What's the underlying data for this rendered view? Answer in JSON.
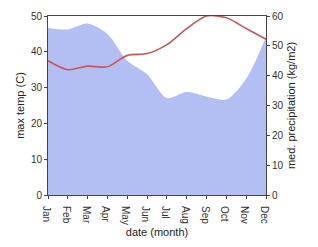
{
  "chart_data": {
    "type": "line",
    "x_label": "date (month)",
    "y_label": "max temp (C)",
    "y2_label": "med. precipitation (kg/m2)",
    "categories": [
      "Jan",
      "Feb",
      "Mar",
      "Apr",
      "May",
      "Jun",
      "Jul",
      "Aug",
      "Sep",
      "Oct",
      "Nov",
      "Dec"
    ],
    "series": [
      {
        "name": "med. precipitation",
        "type": "area",
        "axis": "y2",
        "color": "#b3bff2",
        "values": [
          56,
          55.5,
          57.5,
          54,
          45,
          40.5,
          32.5,
          34.5,
          33,
          32,
          39,
          53
        ]
      },
      {
        "name": "max temp",
        "type": "line",
        "color": "#c9575a",
        "values": [
          37.5,
          35,
          36,
          35.8,
          39,
          39.5,
          42,
          46.5,
          50,
          49.5,
          46.5,
          43.5
        ]
      }
    ],
    "ylim": [
      0,
      50
    ],
    "yticks": [
      0,
      10,
      20,
      30,
      40,
      50
    ],
    "y2lim": [
      0,
      60
    ],
    "y2ticks": [
      0,
      10,
      20,
      30,
      40,
      50,
      60
    ],
    "grid": false
  }
}
